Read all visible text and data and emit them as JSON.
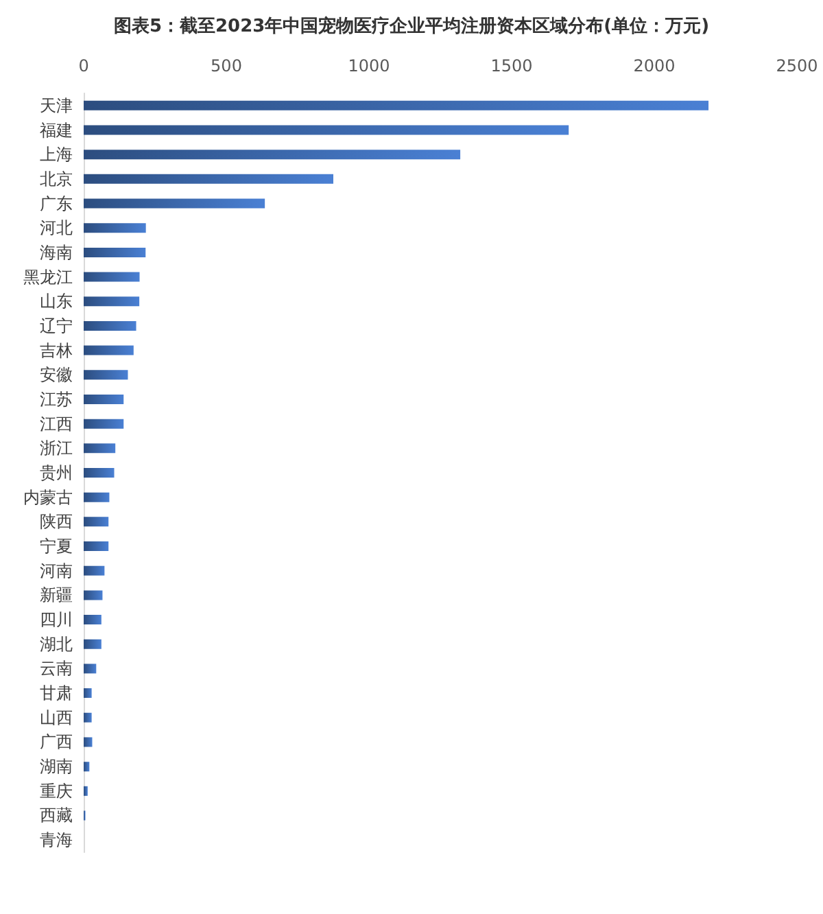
{
  "chart_data": {
    "type": "bar",
    "orientation": "horizontal",
    "title": "图表5：截至2023年中国宠物医疗企业平均注册资本区域分布(单位：万元)",
    "categories": [
      "天津",
      "福建",
      "上海",
      "北京",
      "广东",
      "河北",
      "海南",
      "黑龙江",
      "山东",
      "辽宁",
      "吉林",
      "安徽",
      "江苏",
      "江西",
      "浙江",
      "贵州",
      "内蒙古",
      "陕西",
      "宁夏",
      "河南",
      "新疆",
      "四川",
      "湖北",
      "云南",
      "甘肃",
      "山西",
      "广西",
      "湖南",
      "重庆",
      "西藏",
      "青海"
    ],
    "values": [
      2190,
      1700,
      1320,
      875,
      635,
      218,
      217,
      196,
      195,
      184,
      175,
      155,
      140,
      140,
      111,
      107,
      90,
      87,
      87,
      73,
      66,
      62,
      62,
      44,
      28,
      28,
      30,
      20,
      14,
      6,
      0
    ],
    "color": "#4a80d4",
    "xlim": [
      0,
      2500
    ],
    "xticks": [
      0,
      500,
      1000,
      1500,
      2000,
      2500
    ]
  }
}
